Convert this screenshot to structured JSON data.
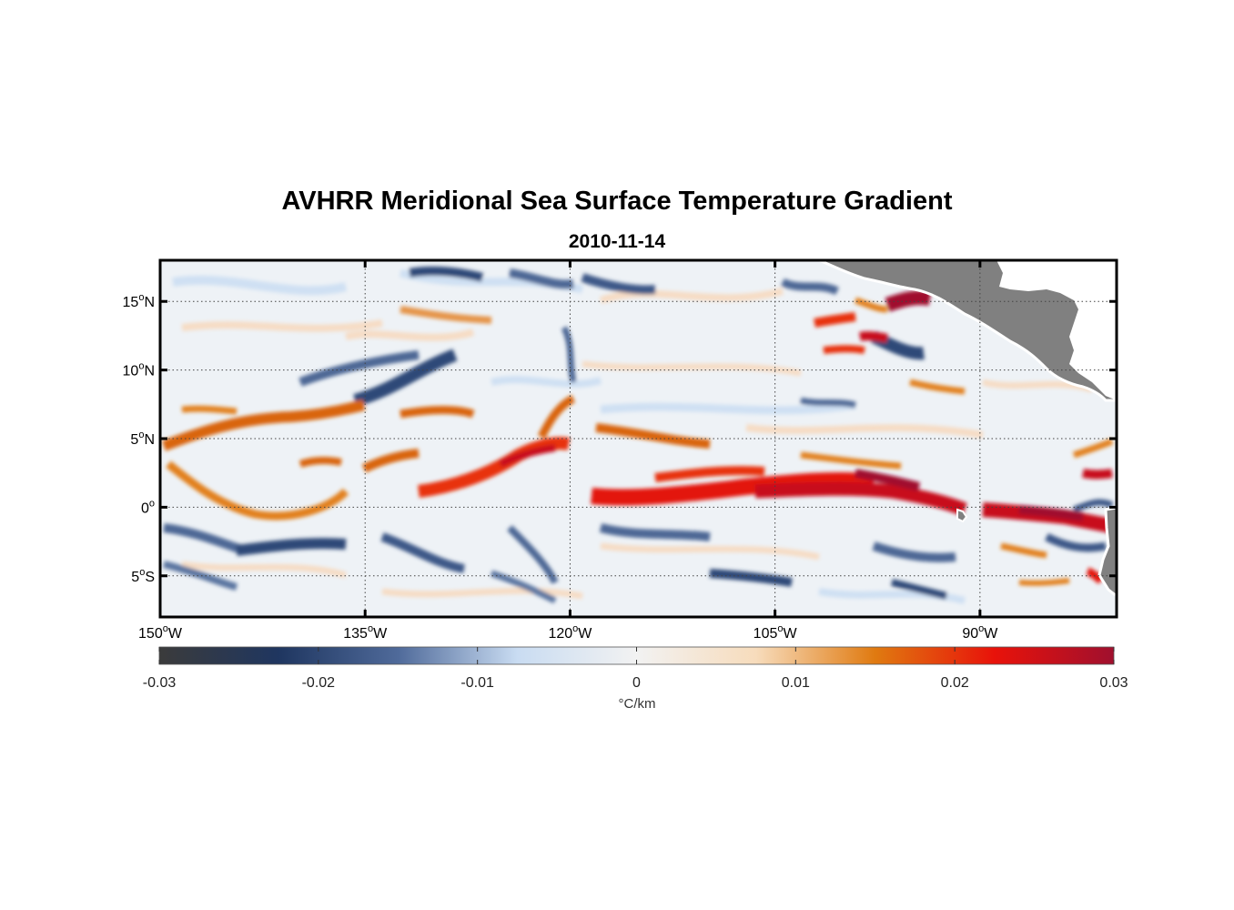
{
  "title": "AVHRR Meridional Sea Surface Temperature Gradient",
  "subtitle": "2010-11-14",
  "map": {
    "lon_range": [
      -150,
      -80
    ],
    "lat_range": [
      -8,
      18
    ],
    "x_ticks": [
      {
        "value": -150,
        "deg": "150",
        "hemi": "W"
      },
      {
        "value": -135,
        "deg": "135",
        "hemi": "W"
      },
      {
        "value": -120,
        "deg": "120",
        "hemi": "W"
      },
      {
        "value": -105,
        "deg": "105",
        "hemi": "W"
      },
      {
        "value": -90,
        "deg": "90",
        "hemi": "W"
      }
    ],
    "y_ticks": [
      {
        "value": 15,
        "deg": "15",
        "hemi": "N"
      },
      {
        "value": 10,
        "deg": "10",
        "hemi": "N"
      },
      {
        "value": 5,
        "deg": "5",
        "hemi": "N"
      },
      {
        "value": 0,
        "deg": "0",
        "hemi": ""
      },
      {
        "value": -5,
        "deg": "5",
        "hemi": "S"
      }
    ],
    "grid": "dotted",
    "land_color": "#808080"
  },
  "colorbar": {
    "range": [
      -0.03,
      0.03
    ],
    "ticks": [
      "-0.03",
      "-0.02",
      "-0.01",
      "0",
      "0.01",
      "0.02",
      "0.03"
    ],
    "label": "°C/km",
    "stops": [
      "#3b3b3b",
      "#1f3660",
      "#4f6a9a",
      "#c9dcf2",
      "#f2f2f2",
      "#f7dcbc",
      "#e07a10",
      "#e8120a",
      "#a0102e"
    ]
  }
}
